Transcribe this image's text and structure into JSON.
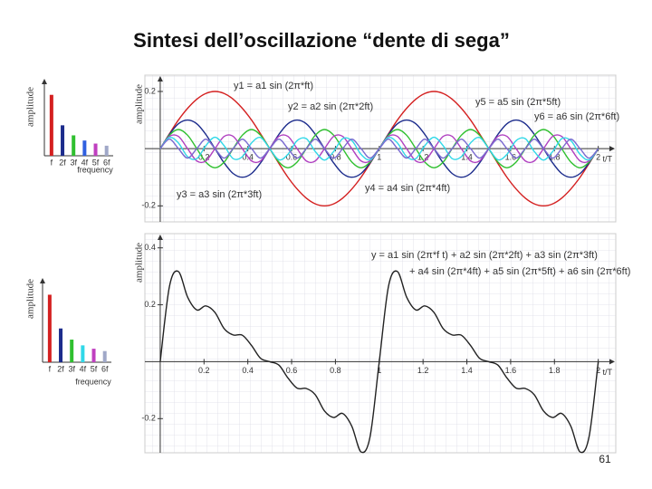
{
  "title": "Sintesi dell’oscillazione “dente di sega”",
  "page_number": 61,
  "chart_data": [
    {
      "type": "bar",
      "ylabel": "amplitude",
      "xlabel": "frequency",
      "categories": [
        "f",
        "2f",
        "3f",
        "4f",
        "5f",
        "6f"
      ],
      "values": [
        0.2,
        0.1,
        0.067,
        0.05,
        0.04,
        0.033
      ],
      "colors": [
        "#d42020",
        "#1c2c8c",
        "#30c030",
        "#3060e0",
        "#c040c0",
        "#a0a8c8"
      ],
      "ylim": [
        0,
        0.22
      ]
    },
    {
      "type": "line",
      "ylabel": "amplitude",
      "xlabel": "t/T",
      "xlim": [
        -0.07,
        2.08
      ],
      "ylim": [
        -0.256,
        0.257
      ],
      "xticks": [
        0.2,
        0.4,
        0.6,
        0.8,
        1,
        1.2,
        1.4,
        1.6,
        1.8,
        2
      ],
      "yticks": [
        0.2,
        -0.2
      ],
      "annotations": [
        "y1 = a1 sin (2π*ft)",
        "y2 = a2 sin (2π*2ft)",
        "y5 = a5 sin (2π*5ft)",
        "y6 = a6 sin (2π*6ft)",
        "y3 = a3 sin (2π*3ft)",
        "y4 = a4 sin (2π*4ft)"
      ],
      "x": [
        0,
        0.042,
        0.083,
        0.125,
        0.167,
        0.208,
        0.25,
        0.292,
        0.333,
        0.375,
        0.417,
        0.458,
        0.5,
        0.542,
        0.583,
        0.625,
        0.667,
        0.708,
        0.75,
        0.792,
        0.833,
        0.875,
        0.917,
        0.958,
        1,
        1.042,
        1.083,
        1.125,
        1.167,
        1.208,
        1.25,
        1.292,
        1.333,
        1.375,
        1.417,
        1.458,
        1.5,
        1.542,
        1.583,
        1.625,
        1.667,
        1.708,
        1.75,
        1.792,
        1.833,
        1.875,
        1.917,
        1.958,
        2
      ],
      "series": [
        {
          "color": "#d42020",
          "values": [
            0,
            0.052,
            0.1,
            0.141,
            0.173,
            0.193,
            0.2,
            0.193,
            0.173,
            0.141,
            0.1,
            0.052,
            0,
            -0.052,
            -0.1,
            -0.141,
            -0.173,
            -0.193,
            -0.2,
            -0.193,
            -0.173,
            -0.141,
            -0.1,
            -0.052,
            0,
            0.052,
            0.1,
            0.141,
            0.173,
            0.193,
            0.2,
            0.193,
            0.173,
            0.141,
            0.1,
            0.052,
            0,
            -0.052,
            -0.1,
            -0.141,
            -0.173,
            -0.193,
            -0.2,
            -0.193,
            -0.173,
            -0.141,
            -0.1,
            -0.052,
            0
          ]
        },
        {
          "color": "#1c2c8c",
          "values": [
            0,
            0.05,
            0.087,
            0.1,
            0.087,
            0.05,
            0,
            -0.05,
            -0.087,
            -0.1,
            -0.087,
            -0.05,
            0,
            0.05,
            0.087,
            0.1,
            0.087,
            0.05,
            0,
            -0.05,
            -0.087,
            -0.1,
            -0.087,
            -0.05,
            0,
            0.05,
            0.087,
            0.1,
            0.087,
            0.05,
            0,
            -0.05,
            -0.087,
            -0.1,
            -0.087,
            -0.05,
            0,
            0.05,
            0.087,
            0.1,
            0.087,
            0.05,
            0,
            -0.05,
            -0.087,
            -0.1,
            -0.087,
            -0.05,
            0
          ]
        },
        {
          "color": "#30c030",
          "values": [
            0,
            0.047,
            0.067,
            0.047,
            0,
            -0.047,
            -0.067,
            -0.047,
            0,
            0.047,
            0.067,
            0.047,
            0,
            -0.047,
            -0.067,
            -0.047,
            0,
            0.047,
            0.067,
            0.047,
            0,
            -0.047,
            -0.067,
            -0.047,
            0,
            0.047,
            0.067,
            0.047,
            0,
            -0.047,
            -0.067,
            -0.047,
            0,
            0.047,
            0.067,
            0.047,
            0,
            -0.047,
            -0.067,
            -0.047,
            0,
            0.047,
            0.067,
            0.047,
            0,
            -0.047,
            -0.067,
            -0.047,
            0
          ]
        },
        {
          "color": "#b040c0",
          "values": [
            0,
            0.043,
            0.043,
            0,
            -0.043,
            -0.043,
            0,
            0.043,
            0.043,
            0,
            -0.043,
            -0.043,
            0,
            0.043,
            0.043,
            0,
            -0.043,
            -0.043,
            0,
            0.043,
            0.043,
            0,
            -0.043,
            -0.043,
            0,
            0.043,
            0.043,
            0,
            -0.043,
            -0.043,
            0,
            0.043,
            0.043,
            0,
            -0.043,
            -0.043,
            0,
            0.043,
            0.043,
            0,
            -0.043,
            -0.043,
            0,
            0.043,
            0.043,
            0,
            -0.043,
            -0.043,
            0
          ]
        },
        {
          "color": "#30d8e8",
          "values": [
            0,
            0.039,
            0.02,
            -0.028,
            -0.035,
            0.01,
            0.04,
            0.01,
            -0.035,
            -0.028,
            0.02,
            0.039,
            0,
            -0.039,
            -0.02,
            0.028,
            0.035,
            -0.01,
            -0.04,
            -0.01,
            0.035,
            0.028,
            -0.02,
            -0.039,
            0,
            0.039,
            0.02,
            -0.028,
            -0.035,
            0.01,
            0.04,
            0.01,
            -0.035,
            -0.028,
            0.02,
            0.039,
            0,
            -0.039,
            -0.02,
            0.028,
            0.035,
            -0.01,
            -0.04,
            -0.01,
            0.035,
            0.028,
            -0.02,
            -0.039,
            0
          ]
        },
        {
          "color": "#7a6ad0",
          "values": [
            0,
            0.033,
            0,
            -0.033,
            0,
            0.033,
            0,
            -0.033,
            0,
            0.033,
            0,
            -0.033,
            0,
            0.033,
            0,
            -0.033,
            0,
            0.033,
            0,
            -0.033,
            0,
            0.033,
            0,
            -0.033,
            0,
            0.033,
            0,
            -0.033,
            0,
            0.033,
            0,
            -0.033,
            0,
            0.033,
            0,
            -0.033,
            0,
            0.033,
            0,
            -0.033,
            0,
            0.033,
            0,
            -0.033,
            0,
            0.033,
            0,
            -0.033,
            0
          ]
        }
      ]
    },
    {
      "type": "bar",
      "ylabel": "amplitude",
      "xlabel": "frequency",
      "categories": [
        "f",
        "2f",
        "3f",
        "4f",
        "5f",
        "6f"
      ],
      "values": [
        0.2,
        0.1,
        0.067,
        0.05,
        0.04,
        0.033
      ],
      "colors": [
        "#d42020",
        "#1c2c8c",
        "#30c030",
        "#30d8e8",
        "#c040c0",
        "#a0a8c8"
      ],
      "ylim": [
        0,
        0.22
      ]
    },
    {
      "type": "line",
      "ylabel": "amplitude",
      "xlabel": "t/T",
      "xlim": [
        -0.07,
        2.08
      ],
      "ylim": [
        -0.32,
        0.45
      ],
      "xticks": [
        0.2,
        0.4,
        0.6,
        0.8,
        1,
        1.2,
        1.4,
        1.6,
        1.8,
        2
      ],
      "yticks": [
        0.4,
        0.2,
        -0.2
      ],
      "annotations": [
        "y = a1 sin (2π*f t) + a2 sin (2π*2ft) + a3 sin (2π*3ft)",
        "+ a4 sin (2π*4ft) + a5 sin (2π*5ft) + a6 sin (2π*6ft)"
      ],
      "x": [
        0,
        0.042,
        0.083,
        0.125,
        0.167,
        0.208,
        0.25,
        0.292,
        0.333,
        0.375,
        0.417,
        0.458,
        0.5,
        0.542,
        0.583,
        0.625,
        0.667,
        0.708,
        0.75,
        0.792,
        0.833,
        0.875,
        0.917,
        0.958,
        1,
        1.042,
        1.083,
        1.125,
        1.167,
        1.208,
        1.25,
        1.292,
        1.333,
        1.375,
        1.417,
        1.458,
        1.5,
        1.542,
        1.583,
        1.625,
        1.667,
        1.708,
        1.75,
        1.792,
        1.833,
        1.875,
        1.917,
        1.958,
        2
      ],
      "series": [
        {
          "color": "#222222",
          "values": [
            0,
            0.264,
            0.317,
            0.227,
            0.182,
            0.196,
            0.173,
            0.116,
            0.094,
            0.093,
            0.057,
            0.012,
            0,
            -0.012,
            -0.057,
            -0.093,
            -0.094,
            -0.116,
            -0.173,
            -0.196,
            -0.182,
            -0.227,
            -0.317,
            -0.264,
            0,
            0.264,
            0.317,
            0.227,
            0.182,
            0.196,
            0.173,
            0.116,
            0.094,
            0.093,
            0.057,
            0.012,
            0,
            -0.012,
            -0.057,
            -0.093,
            -0.094,
            -0.116,
            -0.173,
            -0.196,
            -0.182,
            -0.227,
            -0.317,
            -0.264,
            0
          ]
        }
      ]
    }
  ]
}
